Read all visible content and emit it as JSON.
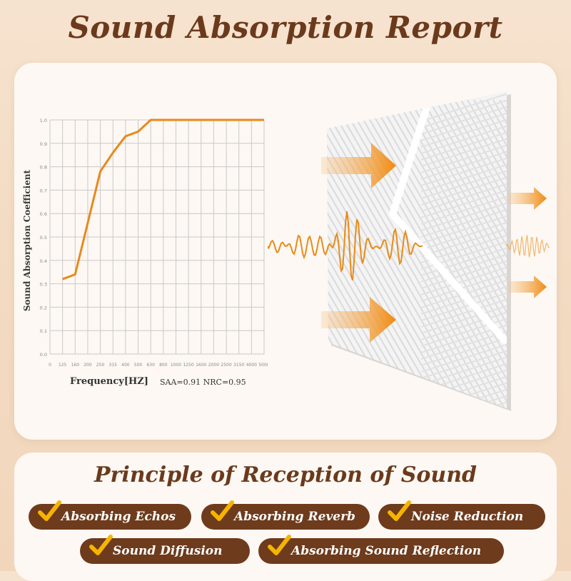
{
  "title": "Sound Absorption Report",
  "chart_data": {
    "type": "line",
    "xlabel": "Frequency[HZ]",
    "ylabel": "Sound Absorption Coefficient",
    "categories": [
      "0",
      "125",
      "160",
      "200",
      "250",
      "315",
      "400",
      "500",
      "630",
      "800",
      "1000",
      "1250",
      "1600",
      "2000",
      "2500",
      "3150",
      "4000",
      "5000"
    ],
    "yticks": [
      "0.0",
      "0.1",
      "0.2",
      "0.3",
      "0.4",
      "0.5",
      "0.6",
      "0.7",
      "0.8",
      "0.9",
      "1.0"
    ],
    "ylim": [
      0,
      1.0
    ],
    "series": [
      {
        "x": [
          "125",
          "160",
          "200",
          "250",
          "315",
          "400",
          "500",
          "630",
          "800",
          "1000",
          "1250",
          "1600",
          "2000",
          "2500",
          "3150",
          "4000",
          "5000"
        ],
        "values": [
          0.32,
          0.34,
          0.56,
          0.78,
          0.86,
          0.93,
          0.95,
          1.0,
          1.0,
          1.0,
          1.0,
          1.0,
          1.0,
          1.0,
          1.0,
          1.0,
          1.0
        ]
      }
    ],
    "grid": true,
    "color": "#e8891c"
  },
  "metrics": "SAA=0.91 NRC=0.95",
  "subtitle": "Principle of Reception of Sound",
  "features": [
    "Absorbing Echos",
    "Absorbing Reverb",
    "Noise Reduction",
    "Sound Diffusion",
    "Absorbing Sound Reflection"
  ],
  "colors": {
    "accent": "#e8891c",
    "brown": "#6e3b1c",
    "check": "#f5b400"
  }
}
